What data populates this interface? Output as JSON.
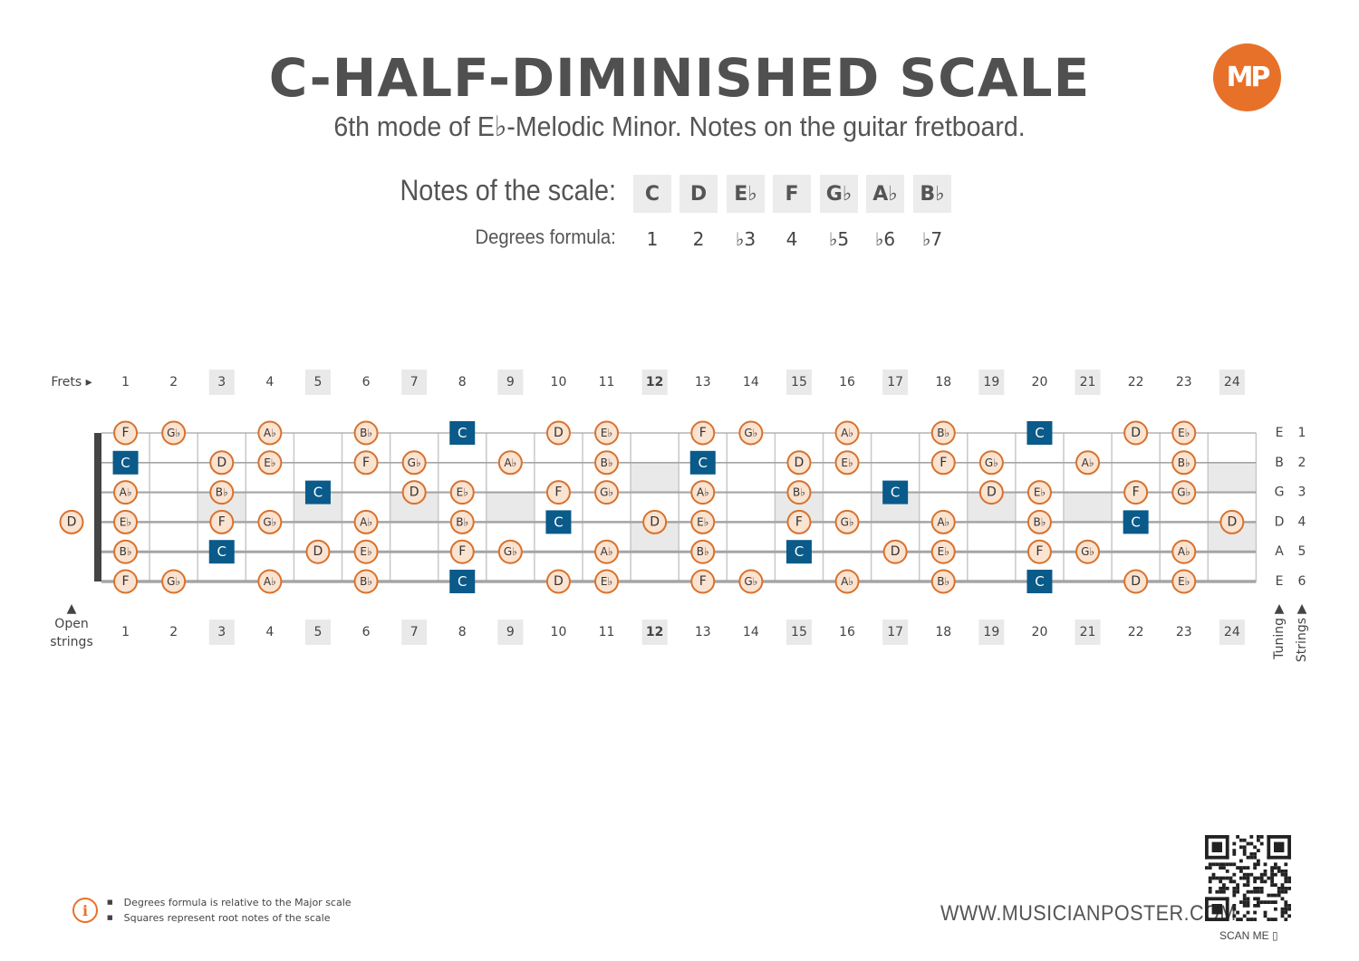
{
  "header": {
    "title": "C-HALF-DIMINISHED SCALE",
    "subtitle": "6th mode of E♭-Melodic Minor. Notes on the guitar fretboard.",
    "logo": "MP"
  },
  "scale": {
    "notes_label": "Notes of the scale:",
    "degrees_label": "Degrees formula:",
    "notes": [
      "C",
      "D",
      "E♭",
      "F",
      "G♭",
      "A♭",
      "B♭"
    ],
    "degrees": [
      "1",
      "2",
      "♭3",
      "4",
      "♭5",
      "♭6",
      "♭7"
    ]
  },
  "fretboard": {
    "frets_label": "Frets ▸",
    "open_strings_label": [
      "Open",
      "strings"
    ],
    "open_arrow": "▲",
    "tuning_label": "Tuning",
    "strings_label": "Strings",
    "fret_numbers": [
      "1",
      "2",
      "3",
      "4",
      "5",
      "6",
      "7",
      "8",
      "9",
      "10",
      "11",
      "12",
      "13",
      "14",
      "15",
      "16",
      "17",
      "18",
      "19",
      "20",
      "21",
      "22",
      "23",
      "24"
    ],
    "marker_frets": [
      3,
      5,
      7,
      9,
      12,
      15,
      17,
      19,
      21,
      24
    ],
    "bold_fret": 12,
    "strings": [
      {
        "tuning": "E",
        "number": "1",
        "open": "E",
        "frets": [
          "F",
          "Gb",
          "",
          "Ab",
          "",
          "Bb",
          "",
          "C",
          "",
          "D",
          "Eb",
          "",
          "F",
          "Gb",
          "",
          "Ab",
          "",
          "Bb",
          "",
          "C",
          "",
          "D",
          "Eb",
          ""
        ]
      },
      {
        "tuning": "B",
        "number": "2",
        "open": "B",
        "frets": [
          "C",
          "",
          "D",
          "Eb",
          "",
          "F",
          "Gb",
          "",
          "Ab",
          "",
          "Bb",
          "",
          "C",
          "",
          "D",
          "Eb",
          "",
          "F",
          "Gb",
          "",
          "Ab",
          "",
          "Bb",
          ""
        ]
      },
      {
        "tuning": "G",
        "number": "3",
        "open": "G",
        "frets": [
          "Ab",
          "",
          "Bb",
          "",
          "C",
          "",
          "D",
          "Eb",
          "",
          "F",
          "Gb",
          "",
          "Ab",
          "",
          "Bb",
          "",
          "C",
          "",
          "D",
          "Eb",
          "",
          "F",
          "Gb",
          ""
        ]
      },
      {
        "tuning": "D",
        "number": "4",
        "open": "D",
        "frets": [
          "Eb",
          "",
          "F",
          "Gb",
          "",
          "Ab",
          "",
          "Bb",
          "",
          "C",
          "",
          "D",
          "Eb",
          "",
          "F",
          "Gb",
          "",
          "Ab",
          "",
          "Bb",
          "",
          "C",
          "",
          "D"
        ]
      },
      {
        "tuning": "A",
        "number": "5",
        "open": "A",
        "frets": [
          "Bb",
          "",
          "C",
          "",
          "D",
          "Eb",
          "",
          "F",
          "Gb",
          "",
          "Ab",
          "",
          "Bb",
          "",
          "C",
          "",
          "D",
          "Eb",
          "",
          "F",
          "Gb",
          "",
          "Ab",
          ""
        ]
      },
      {
        "tuning": "E",
        "number": "6",
        "open": "E",
        "frets": [
          "F",
          "Gb",
          "",
          "Ab",
          "",
          "Bb",
          "",
          "C",
          "",
          "D",
          "Eb",
          "",
          "F",
          "Gb",
          "",
          "Ab",
          "",
          "Bb",
          "",
          "C",
          "",
          "D",
          "Eb",
          ""
        ]
      }
    ],
    "root_note": "C"
  },
  "footer": {
    "info_icon": "i",
    "notes": [
      "Degrees formula is relative to the Major scale",
      "Squares represent root notes of the scale"
    ],
    "website": "WWW.MUSICIANPOSTER.COM",
    "scan_me": "SCAN ME"
  },
  "colors": {
    "root": "#0a5a8a",
    "note_fill": "#fbe3d1",
    "note_stroke": "#d8722d",
    "accent": "#e8712a",
    "marker_bg": "#e9e9e9"
  }
}
